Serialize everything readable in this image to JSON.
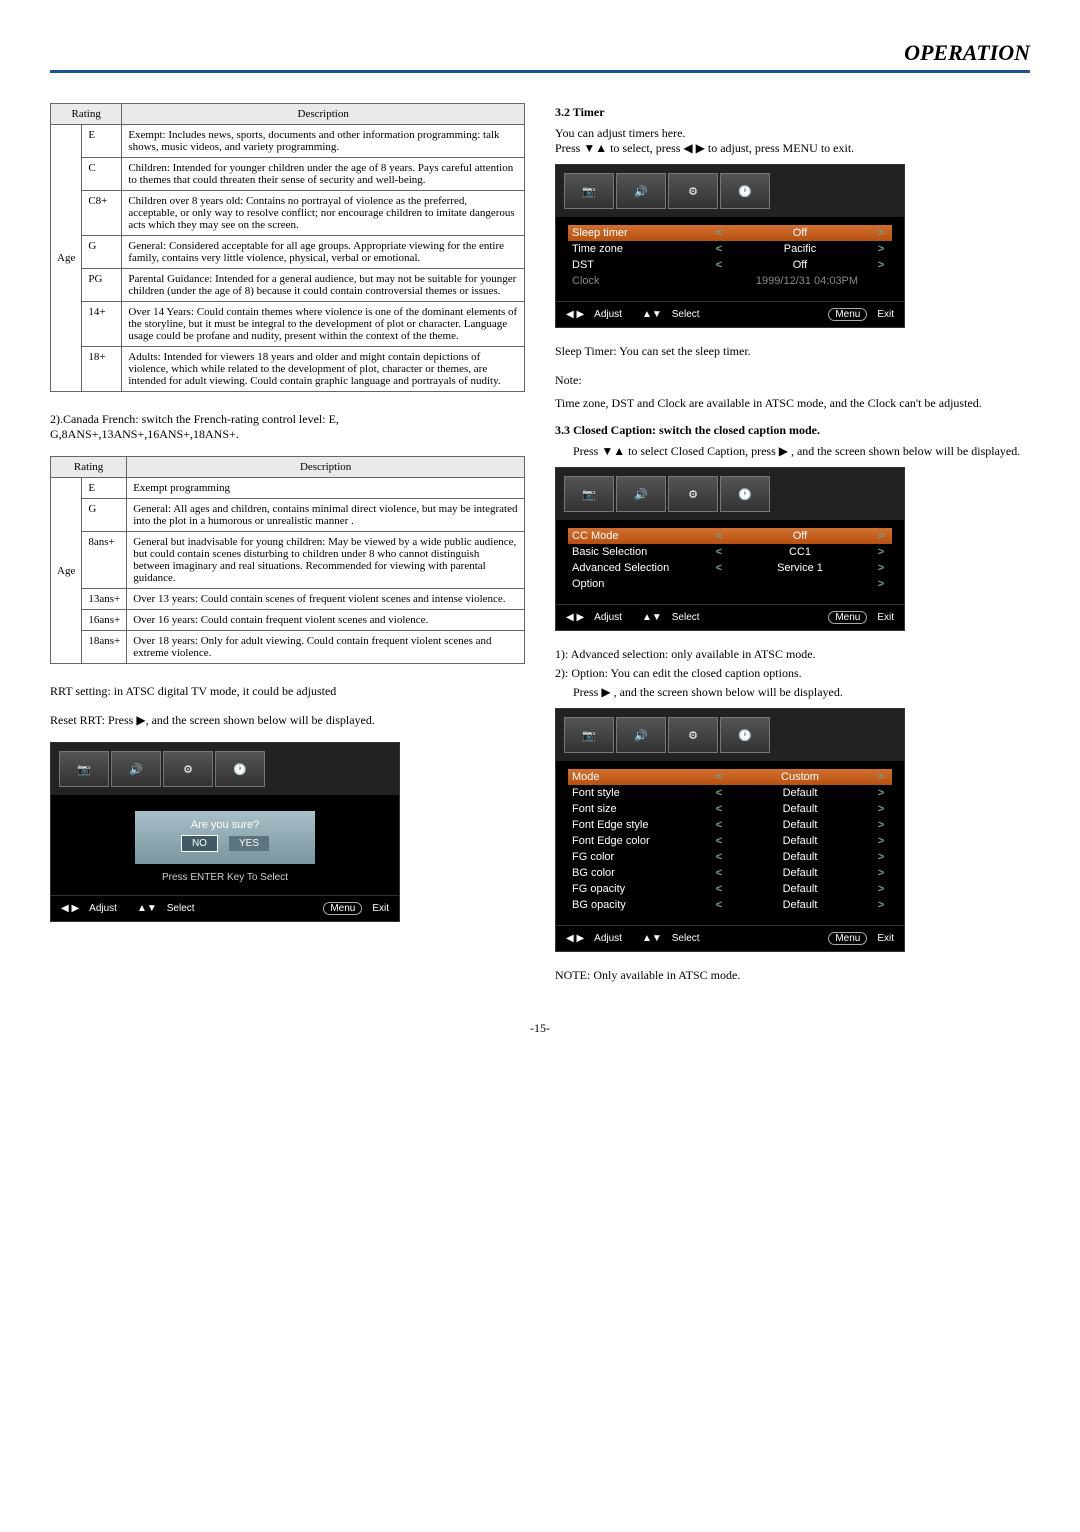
{
  "header": {
    "title": "OPERATION"
  },
  "leftCol": {
    "table1": {
      "headers": [
        "Rating",
        "Description"
      ],
      "ageLabel": "Age",
      "rows": [
        {
          "code": "E",
          "desc": "Exempt: Includes news, sports, documents and other information programming: talk shows, music videos, and variety programming."
        },
        {
          "code": "C",
          "desc": "Children: Intended for younger children under the age of 8 years. Pays careful attention to themes that could threaten their sense of security and well-being."
        },
        {
          "code": "C8+",
          "desc": "Children over 8 years old: Contains no portrayal of violence as the preferred, acceptable, or only way to resolve conflict; nor encourage children to imitate dangerous acts which they may see on the screen."
        },
        {
          "code": "G",
          "desc": "General: Considered acceptable for all age groups. Appropriate viewing for the entire family, contains very little violence, physical, verbal or emotional."
        },
        {
          "code": "PG",
          "desc": "Parental Guidance: Intended for a general audience, but may not be suitable for younger children (under the age of 8) because it could contain controversial themes or issues."
        },
        {
          "code": "14+",
          "desc": "Over 14 Years: Could contain themes where violence is one of the dominant elements of the storyline, but it must be integral to the development of plot or character. Language usage could be profane and nudity, present within the context of the theme."
        },
        {
          "code": "18+",
          "desc": "Adults: Intended for viewers 18 years and older and might contain depictions of violence, which while related to the development of plot, character or themes, are intended for adult viewing. Could contain graphic language and portrayals of nudity."
        }
      ]
    },
    "para1": "2).Canada French: switch the French-rating control level: E, G,8ANS+,13ANS+,16ANS+,18ANS+.",
    "table2": {
      "headers": [
        "Rating",
        "Description"
      ],
      "ageLabel": "Age",
      "rows": [
        {
          "code": "E",
          "desc": "Exempt programming"
        },
        {
          "code": "G",
          "desc": "General: All ages and children, contains minimal direct violence, but may be integrated into the plot in a humorous or unrealistic manner ."
        },
        {
          "code": "8ans+",
          "desc": "General but inadvisable for young children: May be viewed by a wide public audience, but could contain scenes disturbing to children under 8 who cannot distinguish between imaginary and real situations. Recommended for viewing with parental guidance."
        },
        {
          "code": "13ans+",
          "desc": "Over 13 years: Could contain scenes of frequent violent scenes and intense violence."
        },
        {
          "code": "16ans+",
          "desc": "Over 16 years: Could contain frequent violent scenes and violence."
        },
        {
          "code": "18ans+",
          "desc": "Over 18 years: Only for adult viewing. Could contain frequent violent scenes and extreme violence."
        }
      ]
    },
    "para2": "RRT setting: in ATSC digital TV mode, it could be adjusted",
    "para3": "Reset RRT: Press ▶, and the screen shown below will be displayed.",
    "resetMenu": {
      "prompt": "Are you sure?",
      "no": "NO",
      "yes": "YES",
      "footerSelect": "Press ENTER Key To Select",
      "footer": {
        "adjust": "Adjust",
        "select": "Select",
        "menu": "Menu",
        "exit": "Exit"
      }
    }
  },
  "rightCol": {
    "timerHead": "3.2 Timer",
    "timerIntro1": "You can adjust timers here.",
    "timerIntro2": "Press ▼▲ to select, press ◀ ▶ to adjust, press MENU to exit.",
    "timerMenu": {
      "rows": [
        {
          "label": "Sleep timer",
          "val": "Off",
          "hl": true
        },
        {
          "label": "Time zone",
          "val": "Pacific"
        },
        {
          "label": "DST",
          "val": "Off"
        },
        {
          "label": "Clock",
          "val": "1999/12/31 04:03PM",
          "dim": true,
          "noarrows": true
        }
      ],
      "footer": {
        "adjust": "Adjust",
        "select": "Select",
        "menu": "Menu",
        "exit": "Exit"
      }
    },
    "sleepNote": "Sleep Timer: You can set the sleep timer.",
    "noteHead": "Note:",
    "noteBody": "Time zone, DST and Clock are available in ATSC mode, and the Clock can't be adjusted.",
    "ccHead": "3.3 Closed Caption: switch the closed caption mode.",
    "ccIntro": "Press ▼▲ to select Closed Caption, press ▶ , and the screen shown below will be displayed.",
    "ccMenu": {
      "rows": [
        {
          "label": "CC Mode",
          "val": "Off",
          "hl": true
        },
        {
          "label": "Basic Selection",
          "val": "CC1"
        },
        {
          "label": "Advanced Selection",
          "val": "Service 1"
        },
        {
          "label": "Option",
          "val": "",
          "rightonly": true
        }
      ],
      "footer": {
        "adjust": "Adjust",
        "select": "Select",
        "menu": "Menu",
        "exit": "Exit"
      }
    },
    "cc1": "1): Advanced selection: only available in ATSC mode.",
    "cc2": "2): Option: You can edit the closed caption options.",
    "cc3": "Press ▶ , and the screen shown below will be displayed.",
    "optMenu": {
      "rows": [
        {
          "label": "Mode",
          "val": "Custom",
          "hl": true
        },
        {
          "label": "Font style",
          "val": "Default"
        },
        {
          "label": "Font size",
          "val": "Default"
        },
        {
          "label": "Font Edge style",
          "val": "Default"
        },
        {
          "label": "Font Edge color",
          "val": "Default"
        },
        {
          "label": "FG color",
          "val": "Default"
        },
        {
          "label": "BG color",
          "val": "Default"
        },
        {
          "label": "FG opacity",
          "val": "Default"
        },
        {
          "label": "BG opacity",
          "val": "Default"
        }
      ],
      "footer": {
        "adjust": "Adjust",
        "select": "Select",
        "menu": "Menu",
        "exit": "Exit"
      }
    },
    "finalNote": "NOTE: Only available in ATSC mode."
  },
  "pageNum": "-15-"
}
